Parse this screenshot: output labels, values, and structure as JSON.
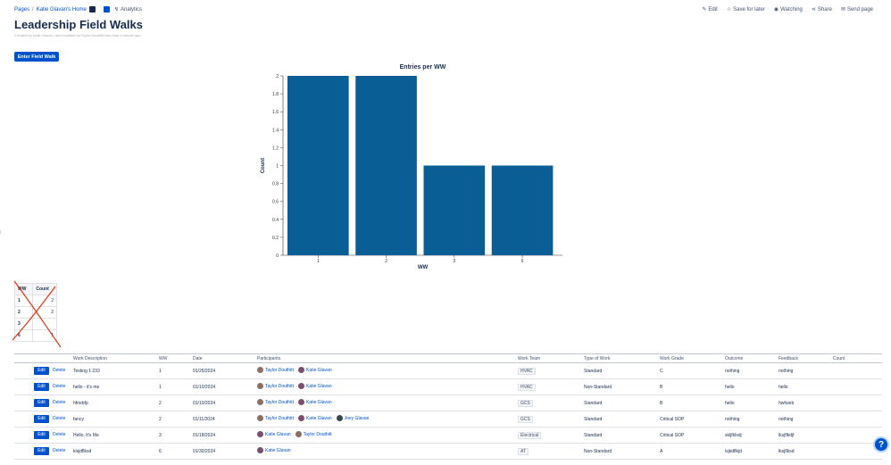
{
  "breadcrumb": {
    "pages": "Pages",
    "sep": "/",
    "home": "Katie Glavan's Home"
  },
  "analytics_label": "Analytics",
  "top_actions": {
    "edit": "Edit",
    "save_for_later": "Save for later",
    "watching": "Watching",
    "share": "Share",
    "send_page": "Send page"
  },
  "page": {
    "title": "Leadership Field Walks",
    "byline": "Created by Katie Glavan, last modified by Taylor Douthitt less than a minute ago"
  },
  "enter_button": "Enter Field Walk",
  "chart_data": {
    "type": "bar",
    "title": "Entries per WW",
    "xlabel": "WW",
    "ylabel": "Count",
    "categories": [
      "1",
      "2",
      "3",
      "6"
    ],
    "values": [
      2,
      2,
      1,
      1
    ],
    "ylim": [
      0,
      2
    ],
    "yticks": [
      "0",
      "0.2",
      "0.4",
      "0.6",
      "0.8",
      "1",
      "1.2",
      "1.4",
      "1.6",
      "1.8",
      "2"
    ],
    "grid": false,
    "bar_color": "#0a5e96"
  },
  "side_marker": "⁞",
  "summary_table": {
    "headers": [
      "WW",
      "Count"
    ],
    "rows": [
      {
        "ww": "1",
        "count": "2"
      },
      {
        "ww": "2",
        "count": "2"
      },
      {
        "ww": "3",
        "count": ""
      },
      {
        "ww": "6",
        "count": "1"
      }
    ]
  },
  "main_table": {
    "headers": [
      "",
      "Work Description",
      "WW",
      "Date",
      "Participants",
      "Work Team",
      "Type of Work",
      "Work Grade",
      "Outcome",
      "Feedback",
      "Count"
    ],
    "edit_label": "Edit",
    "delete_label": "Delete",
    "rows": [
      {
        "desc": "Testing 1 233",
        "ww": "1",
        "date": "01/25/2024",
        "participants": [
          "Taylor Douthitt",
          "Katie Glavan"
        ],
        "team": "HVAC",
        "type": "Standard",
        "grade": "C",
        "outcome": "nothing",
        "feedback": "nothing",
        "count": ""
      },
      {
        "desc": "hello - it's me",
        "ww": "1",
        "date": "01/10/2024",
        "participants": [
          "Taylor Douthitt",
          "Katie Glavan"
        ],
        "team": "HVAC",
        "type": "Non-Standard",
        "grade": "B",
        "outcome": "hello",
        "feedback": "hello",
        "count": ""
      },
      {
        "desc": "hfriebfp",
        "ww": "2",
        "date": "01/10/2024",
        "participants": [
          "Taylor Douthitt",
          "Katie Glavan"
        ],
        "team": "GCS",
        "type": "Standard",
        "grade": "B",
        "outcome": "hello",
        "feedback": "hwfuieb",
        "count": ""
      },
      {
        "desc": "fancy",
        "ww": "2",
        "date": "01/11/2024",
        "participants": [
          "Taylor Douthitt",
          "Katie Glavan",
          "Joey Glavan"
        ],
        "team": "GCS",
        "type": "Standard",
        "grade": "Critical SOP",
        "outcome": "nothing",
        "feedback": "nothing",
        "count": ""
      },
      {
        "desc": "Hello, It's Me",
        "ww": "3",
        "date": "01/18/2024",
        "participants": [
          "Katie Glavan",
          "Taylor Douthitt"
        ],
        "team": "Electrical",
        "type": "Standard",
        "grade": "Critical SOP",
        "outcome": "skljfklsdj",
        "feedback": "lksjflkdjf",
        "count": ""
      },
      {
        "desc": "klsjdflksd",
        "ww": "6",
        "date": "01/30/2024",
        "participants": [
          "Katie Glavan"
        ],
        "team": "AT",
        "type": "Non-Standard",
        "grade": "A",
        "outcome": "lsjkdflkjd",
        "feedback": "lksjflksd",
        "count": ""
      }
    ]
  },
  "help_label": "?",
  "colors": {
    "accent": "#0052cc",
    "cross": "#de350b"
  }
}
